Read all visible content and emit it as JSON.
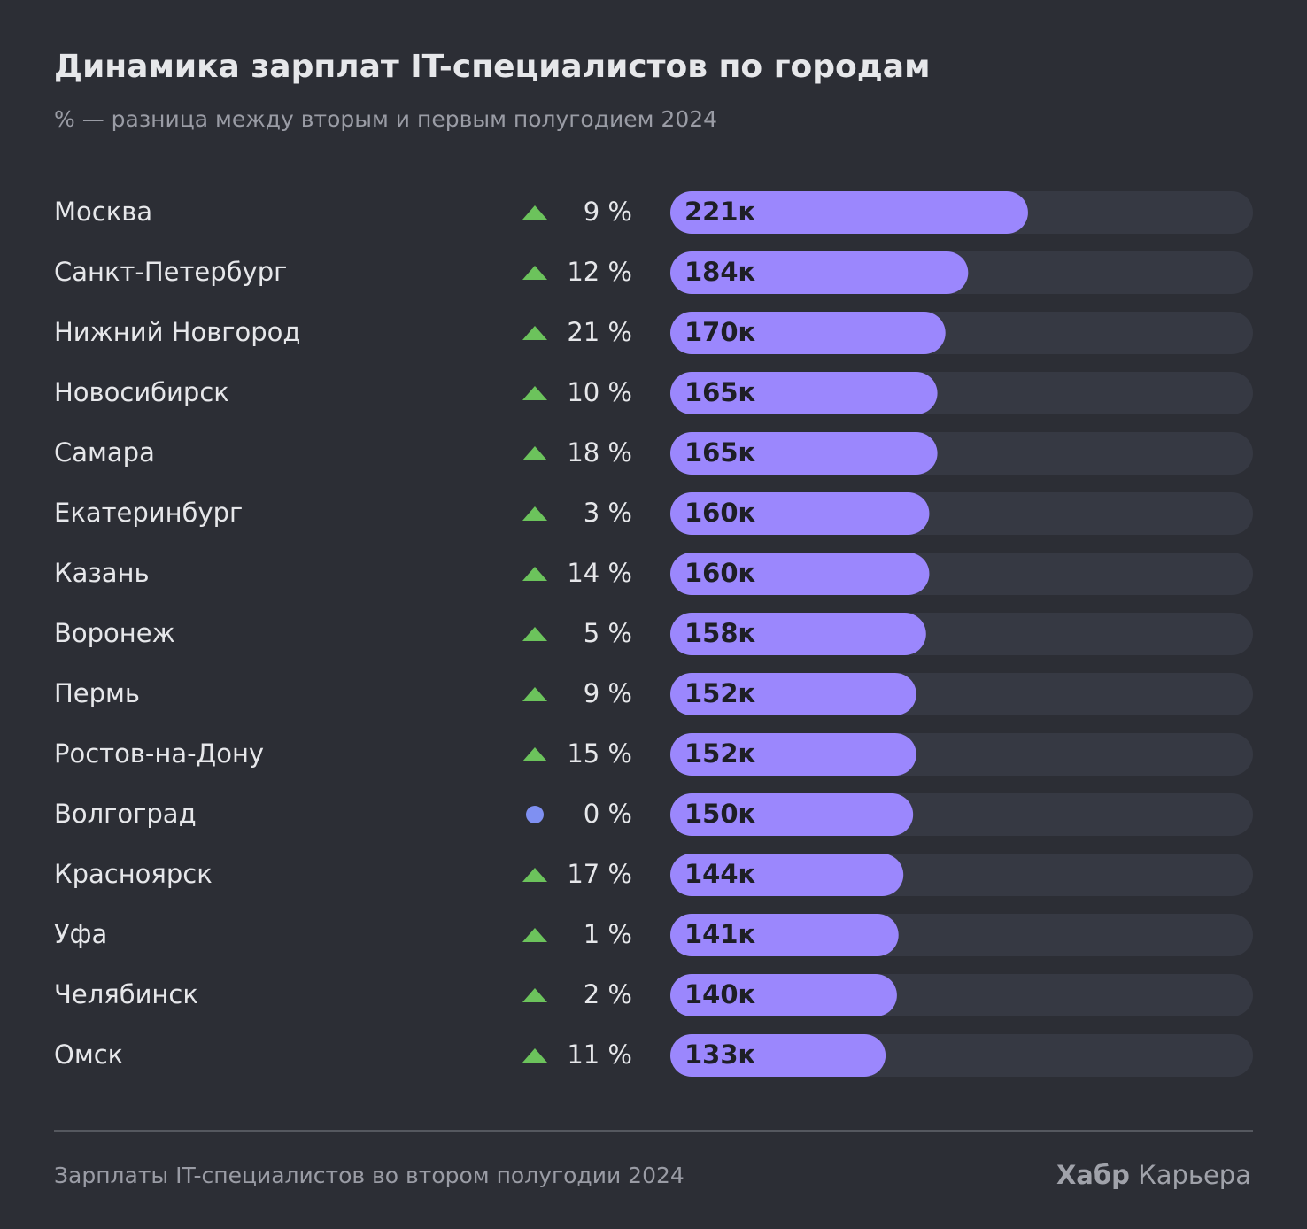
{
  "chart_data": {
    "type": "bar",
    "title": "Динамика зарплат IT-специалистов по городам",
    "subtitle": "% — разница между вторым и первым полугодием 2024",
    "categories": [
      "Москва",
      "Санкт-Петербург",
      "Нижний Новгород",
      "Новосибирск",
      "Самара",
      "Екатеринбург",
      "Казань",
      "Воронеж",
      "Пермь",
      "Ростов-на-Дону",
      "Волгоград",
      "Красноярск",
      "Уфа",
      "Челябинск",
      "Омск"
    ],
    "values": [
      221,
      184,
      170,
      165,
      165,
      160,
      160,
      158,
      152,
      152,
      150,
      144,
      141,
      140,
      133
    ],
    "value_labels": [
      "221к",
      "184к",
      "170к",
      "165к",
      "165к",
      "160к",
      "160к",
      "158к",
      "152к",
      "152к",
      "150к",
      "144к",
      "141к",
      "140к",
      "133к"
    ],
    "changes": [
      9,
      12,
      21,
      10,
      18,
      3,
      14,
      5,
      9,
      15,
      0,
      17,
      1,
      2,
      11
    ],
    "change_labels": [
      "9 %",
      "12 %",
      "21 %",
      "10 %",
      "18 %",
      "3 %",
      "14 %",
      "5 %",
      "9 %",
      "15 %",
      "0 %",
      "17 %",
      "1 %",
      "2 %",
      "11 %"
    ],
    "xlim": [
      0,
      360
    ],
    "color": "#9b87fd",
    "track_color": "#363943",
    "up_color": "#6cc35c",
    "flat_color": "#7f90f2",
    "footer": "Зарплаты IT-специалистов во втором полугодии 2024",
    "brand_bold": "Хабр",
    "brand": "Карьера"
  }
}
